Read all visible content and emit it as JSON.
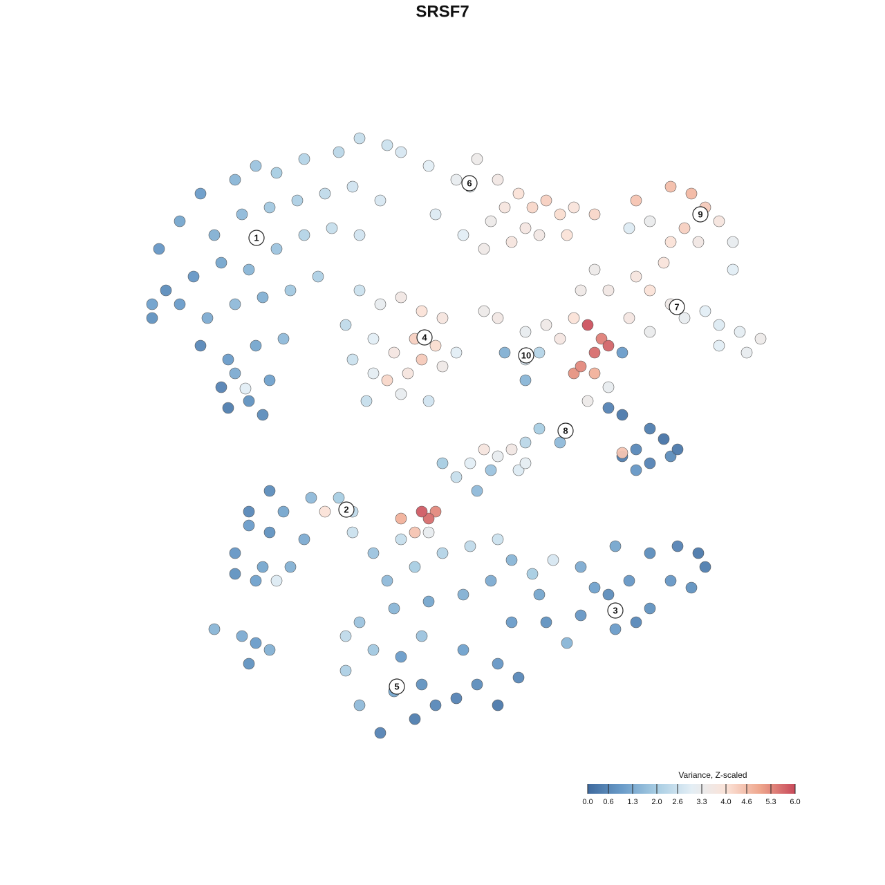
{
  "chart_data": {
    "type": "scatter",
    "title": "SRSF7",
    "xlim": [
      -45,
      45
    ],
    "ylim": [
      -45,
      45
    ],
    "colorbar": {
      "title": "Variance, Z-scaled",
      "clim": [
        0,
        6
      ],
      "colors": [
        "#3f6a9e",
        "#6a9cc9",
        "#a8cde3",
        "#e3eef5",
        "#fbe3d8",
        "#eea58c",
        "#c8495a"
      ],
      "ticks": [
        {
          "value": 0,
          "label": "0.0"
        },
        {
          "value": 0.6,
          "label": "0.6"
        },
        {
          "value": 1.3,
          "label": "1.3"
        },
        {
          "value": 2.0,
          "label": "2.0"
        },
        {
          "value": 2.6,
          "label": "2.6"
        },
        {
          "value": 3.3,
          "label": "3.3"
        },
        {
          "value": 4.0,
          "label": "4.0"
        },
        {
          "value": 4.6,
          "label": "4.6"
        },
        {
          "value": 5.3,
          "label": "5.3"
        },
        {
          "value": 6.0,
          "label": "6.0"
        }
      ]
    },
    "annotations": [
      {
        "text": "1",
        "x": -26.9,
        "y": 29.6
      },
      {
        "text": "2",
        "x": -13.9,
        "y": -9.7
      },
      {
        "text": "3",
        "x": 25,
        "y": -24.3
      },
      {
        "text": "4",
        "x": -2.6,
        "y": 15.2
      },
      {
        "text": "5",
        "x": -6.6,
        "y": -35.3
      },
      {
        "text": "6",
        "x": 3.9,
        "y": 37.5
      },
      {
        "text": "7",
        "x": 33.9,
        "y": 19.6
      },
      {
        "text": "8",
        "x": 17.8,
        "y": 1.7
      },
      {
        "text": "9",
        "x": 37.3,
        "y": 33
      },
      {
        "text": "10",
        "x": 12.1,
        "y": 12.6
      }
    ],
    "points": [
      [
        -41,
        28,
        0.9
      ],
      [
        -38,
        32,
        1.2
      ],
      [
        -35,
        36,
        1.0
      ],
      [
        -30,
        38,
        1.5
      ],
      [
        -27,
        40,
        1.8
      ],
      [
        -24,
        39,
        2.0
      ],
      [
        -20,
        41,
        2.2
      ],
      [
        -15,
        42,
        2.3
      ],
      [
        -12,
        44,
        2.5
      ],
      [
        -8,
        43,
        2.6
      ],
      [
        -33,
        30,
        1.4
      ],
      [
        -29,
        33,
        1.6
      ],
      [
        -25,
        34,
        1.9
      ],
      [
        -21,
        35,
        2.1
      ],
      [
        -17,
        36,
        2.4
      ],
      [
        -13,
        37,
        2.7
      ],
      [
        -9,
        35,
        2.8
      ],
      [
        -36,
        24,
        0.9
      ],
      [
        -32,
        26,
        1.2
      ],
      [
        -28,
        25,
        1.5
      ],
      [
        -24,
        28,
        1.8
      ],
      [
        -20,
        30,
        2.2
      ],
      [
        -16,
        31,
        2.5
      ],
      [
        -12,
        30,
        2.7
      ],
      [
        -40,
        22,
        0.7
      ],
      [
        -42,
        18,
        0.8
      ],
      [
        -38,
        20,
        1.0
      ],
      [
        -34,
        18,
        1.3
      ],
      [
        -30,
        20,
        1.6
      ],
      [
        -26,
        21,
        1.4
      ],
      [
        -22,
        22,
        1.9
      ],
      [
        -18,
        24,
        2.1
      ],
      [
        -35,
        14,
        0.6
      ],
      [
        -31,
        12,
        1.0
      ],
      [
        -27,
        14,
        1.2
      ],
      [
        -23,
        15,
        1.6
      ],
      [
        -32,
        8,
        0.5
      ],
      [
        -28,
        6,
        0.8
      ],
      [
        -31,
        5,
        0.4
      ],
      [
        -26,
        4,
        0.7
      ],
      [
        -30,
        10,
        1.3
      ],
      [
        -25,
        9,
        1.1
      ],
      [
        -42,
        20,
        1.1
      ],
      [
        -28.5,
        7.8,
        3.0
      ],
      [
        -6,
        42,
        2.8
      ],
      [
        -2,
        40,
        3.0
      ],
      [
        2,
        38,
        3.2
      ],
      [
        5,
        41,
        3.4
      ],
      [
        4,
        37,
        3.1
      ],
      [
        8,
        38,
        3.6
      ],
      [
        9,
        34,
        3.8
      ],
      [
        11,
        36,
        4.0
      ],
      [
        13,
        34,
        4.2
      ],
      [
        15,
        35,
        4.3
      ],
      [
        17,
        33,
        4.1
      ],
      [
        18,
        30,
        4.0
      ],
      [
        12,
        31,
        3.7
      ],
      [
        7,
        32,
        3.4
      ],
      [
        3,
        30,
        3.0
      ],
      [
        -1,
        33,
        2.9
      ],
      [
        6,
        28,
        3.5
      ],
      [
        10,
        29,
        3.8
      ],
      [
        14,
        30,
        3.6
      ],
      [
        19,
        34,
        3.9
      ],
      [
        22,
        33,
        4.2
      ],
      [
        28,
        35,
        4.5
      ],
      [
        33,
        37,
        4.6
      ],
      [
        36,
        36,
        4.7
      ],
      [
        38,
        34,
        4.4
      ],
      [
        40,
        32,
        3.8
      ],
      [
        35,
        31,
        4.3
      ],
      [
        30,
        32,
        3.3
      ],
      [
        27,
        31,
        2.9
      ],
      [
        33,
        29,
        4.0
      ],
      [
        42,
        29,
        3.2
      ],
      [
        37,
        29,
        3.6
      ],
      [
        42,
        25,
        3.0
      ],
      [
        24,
        22,
        3.6
      ],
      [
        28,
        24,
        3.8
      ],
      [
        30,
        22,
        4.0
      ],
      [
        33,
        20,
        3.5
      ],
      [
        35,
        18,
        3.2
      ],
      [
        38,
        19,
        3.0
      ],
      [
        40,
        17,
        2.9
      ],
      [
        43,
        16,
        3.1
      ],
      [
        46,
        15,
        3.4
      ],
      [
        44,
        13,
        3.2
      ],
      [
        40,
        14,
        3.0
      ],
      [
        30,
        16,
        3.3
      ],
      [
        27,
        18,
        3.7
      ],
      [
        22,
        25,
        3.4
      ],
      [
        20,
        22,
        3.5
      ],
      [
        32,
        26,
        3.9
      ],
      [
        -12,
        22,
        2.6
      ],
      [
        -9,
        20,
        3.2
      ],
      [
        -6,
        21,
        3.6
      ],
      [
        -3,
        19,
        4.0
      ],
      [
        0,
        18,
        3.8
      ],
      [
        -4,
        15,
        4.3
      ],
      [
        -1,
        14,
        4.1
      ],
      [
        -7,
        13,
        3.7
      ],
      [
        -10,
        15,
        3.0
      ],
      [
        -13,
        12,
        2.6
      ],
      [
        -10,
        10,
        3.1
      ],
      [
        -5,
        10,
        3.8
      ],
      [
        0,
        11,
        3.5
      ],
      [
        2,
        13,
        3.0
      ],
      [
        -6,
        7,
        3.2
      ],
      [
        -11,
        6,
        2.5
      ],
      [
        -2,
        6,
        2.7
      ],
      [
        -14,
        17,
        2.4
      ],
      [
        -8,
        9,
        4.2
      ],
      [
        -3,
        12,
        4.4
      ],
      [
        12,
        12,
        2.8
      ],
      [
        14,
        13,
        2.2
      ],
      [
        12,
        16,
        3.2
      ],
      [
        15,
        17,
        3.5
      ],
      [
        8,
        18,
        3.6
      ],
      [
        6,
        19,
        3.4
      ],
      [
        19,
        18,
        4.0
      ],
      [
        17,
        15,
        3.7
      ],
      [
        12,
        9,
        1.5
      ],
      [
        9,
        13,
        1.4
      ],
      [
        19,
        10,
        5.2
      ],
      [
        21,
        17,
        5.9
      ],
      [
        22,
        13,
        5.6
      ],
      [
        23,
        15,
        5.4
      ],
      [
        24,
        14,
        5.7
      ],
      [
        20,
        11,
        5.3
      ],
      [
        24,
        8,
        3.2
      ],
      [
        21,
        6,
        3.4
      ],
      [
        22,
        10,
        4.8
      ],
      [
        26,
        13,
        1.0
      ],
      [
        24,
        5,
        0.5
      ],
      [
        26,
        4,
        0.3
      ],
      [
        30,
        2,
        0.4
      ],
      [
        32,
        0.5,
        0.2
      ],
      [
        28,
        -1,
        0.6
      ],
      [
        30,
        -3,
        0.5
      ],
      [
        26,
        -2,
        0.4
      ],
      [
        33,
        -2,
        0.7
      ],
      [
        34,
        -1,
        0.3
      ],
      [
        28,
        -4,
        0.9
      ],
      [
        18,
        2,
        1.5
      ],
      [
        14,
        2,
        2.0
      ],
      [
        12,
        0,
        2.3
      ],
      [
        17,
        0,
        1.6
      ],
      [
        26,
        -1.5,
        4.5
      ],
      [
        8,
        -2,
        3.2
      ],
      [
        10,
        -1,
        3.6
      ],
      [
        6,
        -1,
        3.8
      ],
      [
        4,
        -3,
        3.0
      ],
      [
        0,
        -3,
        2.0
      ],
      [
        2,
        -5,
        2.5
      ],
      [
        7,
        -4,
        1.8
      ],
      [
        11,
        -4,
        2.9
      ],
      [
        12,
        -3,
        3.1
      ],
      [
        5,
        -7,
        1.6
      ],
      [
        -1,
        -10,
        5.3
      ],
      [
        -2,
        -11,
        5.6
      ],
      [
        -3,
        -10,
        5.8
      ],
      [
        -6,
        -11,
        4.8
      ],
      [
        -4,
        -13,
        4.5
      ],
      [
        -2,
        -13,
        3.2
      ],
      [
        -25,
        -7,
        0.7
      ],
      [
        -28,
        -10,
        0.6
      ],
      [
        -23,
        -10,
        1.2
      ],
      [
        -19,
        -8,
        1.6
      ],
      [
        -15,
        -8,
        2.0
      ],
      [
        -13,
        -10,
        2.4
      ],
      [
        -17,
        -10,
        4.0
      ],
      [
        -13,
        -13,
        2.6
      ],
      [
        -20,
        -14,
        1.3
      ],
      [
        -25,
        -13,
        0.8
      ],
      [
        -28,
        -12,
        1.0
      ],
      [
        -30,
        -16,
        0.9
      ],
      [
        -26,
        -18,
        1.2
      ],
      [
        -22,
        -18,
        1.4
      ],
      [
        -24,
        -20,
        2.9
      ],
      [
        -27,
        -20,
        1.1
      ],
      [
        -30,
        -19,
        0.8
      ],
      [
        -33,
        -27,
        1.5
      ],
      [
        -29,
        -28,
        1.3
      ],
      [
        -27,
        -29,
        1.0
      ],
      [
        -25,
        -30,
        1.4
      ],
      [
        -28,
        -32,
        0.8
      ],
      [
        -6,
        -14,
        2.5
      ],
      [
        -10,
        -16,
        1.8
      ],
      [
        -8,
        -20,
        1.6
      ],
      [
        -4,
        -18,
        2.0
      ],
      [
        0,
        -16,
        2.2
      ],
      [
        4,
        -15,
        2.4
      ],
      [
        8,
        -14,
        2.6
      ],
      [
        10,
        -17,
        1.5
      ],
      [
        13,
        -19,
        2.0
      ],
      [
        16,
        -17,
        2.8
      ],
      [
        7,
        -20,
        1.3
      ],
      [
        3,
        -22,
        1.4
      ],
      [
        -2,
        -23,
        1.2
      ],
      [
        -7,
        -24,
        1.5
      ],
      [
        -12,
        -26,
        1.8
      ],
      [
        -14,
        -28,
        2.4
      ],
      [
        -10,
        -30,
        1.9
      ],
      [
        -6,
        -31,
        1.0
      ],
      [
        -3,
        -35,
        0.8
      ],
      [
        -7,
        -36,
        1.2
      ],
      [
        -4,
        -40,
        0.4
      ],
      [
        -1,
        -38,
        0.6
      ],
      [
        2,
        -37,
        0.5
      ],
      [
        5,
        -35,
        0.7
      ],
      [
        8,
        -38,
        0.3
      ],
      [
        -12,
        -38,
        1.6
      ],
      [
        -9,
        -42,
        0.5
      ],
      [
        -14,
        -33,
        2.1
      ],
      [
        3,
        -30,
        1.1
      ],
      [
        8,
        -32,
        0.9
      ],
      [
        10,
        -26,
        1.0
      ],
      [
        15,
        -26,
        0.8
      ],
      [
        20,
        -25,
        0.9
      ],
      [
        24,
        -22,
        0.7
      ],
      [
        25,
        -27,
        1.0
      ],
      [
        28,
        -26,
        0.6
      ],
      [
        30,
        -24,
        0.8
      ],
      [
        33,
        -20,
        0.9
      ],
      [
        30,
        -16,
        0.7
      ],
      [
        34,
        -15,
        0.5
      ],
      [
        37,
        -16,
        0.3
      ],
      [
        38,
        -18,
        0.4
      ],
      [
        36,
        -21,
        0.8
      ],
      [
        27,
        -20,
        0.9
      ],
      [
        22,
        -21,
        1.1
      ],
      [
        25,
        -15,
        1.2
      ],
      [
        20,
        -18,
        1.3
      ],
      [
        14,
        -22,
        1.2
      ],
      [
        18,
        -29,
        1.5
      ],
      [
        11,
        -34,
        0.6
      ],
      [
        -3,
        -28,
        1.8
      ]
    ]
  }
}
